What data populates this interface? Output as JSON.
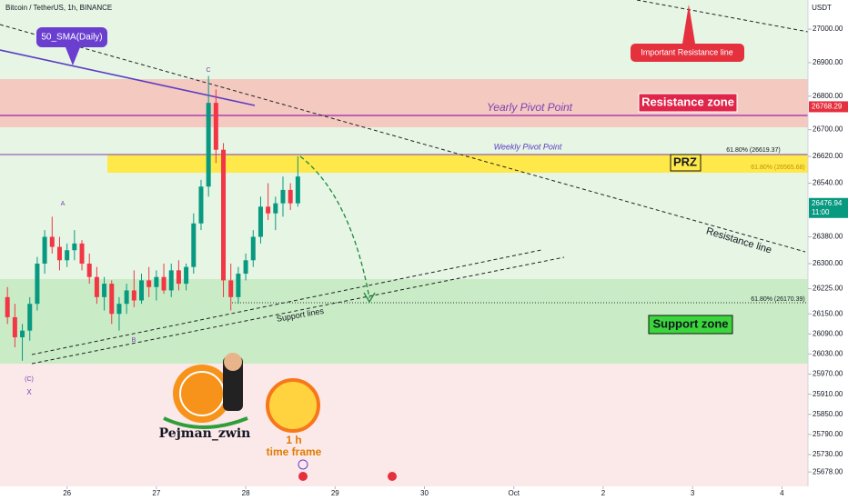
{
  "chart_data": {
    "type": "candlestick",
    "title": "Bitcoin / TetherUS, 1h, BINANCE",
    "currency": "USDT",
    "up_color": "#089981",
    "down_color": "#f23645",
    "x": [
      -16,
      -14,
      -12,
      -10,
      -8,
      -6,
      -4,
      -2,
      0,
      2,
      4,
      6,
      8,
      10,
      12,
      14,
      16,
      18,
      20,
      22,
      24,
      26,
      28,
      30,
      32,
      34,
      36,
      38,
      40,
      42,
      44,
      46,
      48,
      50,
      52,
      54,
      56,
      58,
      60,
      62
    ],
    "open": [
      26200,
      26140,
      26080,
      26100,
      26180,
      26300,
      26380,
      26350,
      26310,
      26340,
      26360,
      26300,
      26260,
      26200,
      26240,
      26150,
      26180,
      26220,
      26190,
      26250,
      26230,
      26260,
      26220,
      26280,
      26240,
      26290,
      26420,
      26530,
      26780,
      26640,
      26250,
      26200,
      26270,
      26310,
      26380,
      26470,
      26450,
      26480,
      26520,
      26480
    ],
    "high": [
      26230,
      26180,
      26120,
      26200,
      26320,
      26400,
      26440,
      26380,
      26360,
      26400,
      26370,
      26330,
      26290,
      26260,
      26250,
      26200,
      26240,
      26280,
      26270,
      26290,
      26280,
      26300,
      26300,
      26310,
      26300,
      26450,
      26550,
      26860,
      26820,
      26660,
      26300,
      26290,
      26330,
      26400,
      26500,
      26540,
      26500,
      26560,
      26540,
      26620
    ],
    "low": [
      26120,
      26050,
      26010,
      26070,
      26160,
      26270,
      26330,
      26280,
      26290,
      26310,
      26280,
      26240,
      26180,
      26160,
      26120,
      26100,
      26150,
      26170,
      26180,
      26200,
      26190,
      26210,
      26200,
      26220,
      26220,
      26270,
      26400,
      26500,
      26600,
      26200,
      26160,
      26180,
      26250,
      26290,
      26360,
      26430,
      26400,
      26440,
      26460,
      26470
    ],
    "close": [
      26140,
      26080,
      26100,
      26180,
      26300,
      26380,
      26350,
      26310,
      26340,
      26360,
      26300,
      26260,
      26200,
      26240,
      26150,
      26180,
      26220,
      26190,
      26250,
      26230,
      26260,
      26220,
      26280,
      26240,
      26290,
      26420,
      26530,
      26780,
      26640,
      26250,
      26200,
      26270,
      26310,
      26380,
      26470,
      26450,
      26480,
      26520,
      26480,
      26560
    ],
    "xlim": [
      -18,
      199
    ],
    "xticks": [
      {
        "value": 0,
        "label": "26"
      },
      {
        "value": 24,
        "label": "27"
      },
      {
        "value": 48,
        "label": "28"
      },
      {
        "value": 72,
        "label": "29"
      },
      {
        "value": 96,
        "label": "30"
      },
      {
        "value": 120,
        "label": "Oct"
      },
      {
        "value": 144,
        "label": "2"
      },
      {
        "value": 168,
        "label": "3"
      },
      {
        "value": 192,
        "label": "4"
      }
    ],
    "ylim": [
      25635,
      27087
    ],
    "yticks": [
      {
        "value": 27000,
        "label": "27000.00"
      },
      {
        "value": 26900,
        "label": "26900.00"
      },
      {
        "value": 26800,
        "label": "26800.00"
      },
      {
        "value": 26700,
        "label": "26700.00"
      },
      {
        "value": 26620,
        "label": "26620.00"
      },
      {
        "value": 26540,
        "label": "26540.00"
      },
      {
        "value": 26380,
        "label": "26380.00"
      },
      {
        "value": 26300,
        "label": "26300.00"
      },
      {
        "value": 26225,
        "label": "26225.00"
      },
      {
        "value": 26150,
        "label": "26150.00"
      },
      {
        "value": 26090,
        "label": "26090.00"
      },
      {
        "value": 26030,
        "label": "26030.00"
      },
      {
        "value": 25970,
        "label": "25970.00"
      },
      {
        "value": 25910,
        "label": "25910.00"
      },
      {
        "value": 25850,
        "label": "25850.00"
      },
      {
        "value": 25790,
        "label": "25790.00"
      },
      {
        "value": 25730,
        "label": "25730.00"
      },
      {
        "value": 25678,
        "label": "25678.00"
      }
    ],
    "pivot_price": 26768.29,
    "last_price": 26476.94,
    "countdown": "11:00",
    "annotations": {
      "sma": "50_SMA(Daily)",
      "important": "Important Resistance line",
      "resistance_zone": "Resistance zone",
      "yearly": "Yearly Pivot Point",
      "weekly": "Weekly Pivot Point",
      "prz": "PRZ",
      "resistance_line": "Resistance line",
      "support_lines": "Support lines",
      "support_zone": "Support zone",
      "fib1": "61.80% (26619.37)",
      "fib2": "61.80% (26565.68)",
      "fib3": "61.80% (26170.39)",
      "wave_c": "C",
      "wave_a": "A",
      "wave_b": "B",
      "wave_cc": "(C)",
      "wave_x": "X",
      "author": "Pejman_zwin",
      "tf1": "1 h",
      "tf2": "time frame"
    }
  }
}
